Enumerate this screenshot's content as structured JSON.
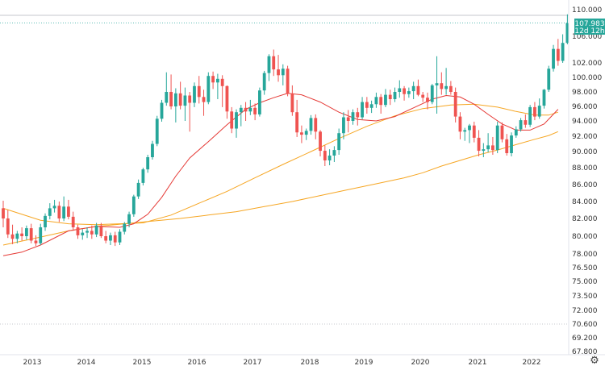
{
  "chart_data": {
    "type": "candlestick",
    "x_ticks": [
      "2013",
      "2014",
      "2015",
      "2016",
      "2017",
      "2018",
      "2019",
      "2020",
      "2021",
      "2022"
    ],
    "y_ticks": [
      "110.000",
      "106.000",
      "102.000",
      "100.000",
      "98.000",
      "96.000",
      "94.000",
      "92.000",
      "90.000",
      "88.000",
      "86.000",
      "84.000",
      "82.000",
      "80.000",
      "78.000",
      "76.500",
      "75.000",
      "73.500",
      "72.000",
      "70.600",
      "69.200",
      "67.800"
    ],
    "last_price": {
      "value": "107.983",
      "countdown": "12d 12h"
    },
    "colors": {
      "up": "#26a69a",
      "down": "#ef5350",
      "ma_red": "#e53935",
      "ma_orange": "#f6a623",
      "ma_orange2": "#f6a623"
    },
    "candles": [
      [
        83.2,
        84.1,
        81.0,
        82.0
      ],
      [
        82.0,
        83.0,
        79.8,
        80.2
      ],
      [
        80.2,
        81.3,
        79.1,
        79.7
      ],
      [
        79.7,
        80.6,
        79.2,
        80.3
      ],
      [
        80.3,
        81.0,
        79.5,
        80.0
      ],
      [
        80.0,
        81.2,
        79.6,
        80.9
      ],
      [
        80.9,
        81.4,
        79.2,
        79.5
      ],
      [
        79.5,
        80.1,
        78.9,
        79.2
      ],
      [
        79.2,
        81.4,
        79.0,
        81.0
      ],
      [
        81.0,
        82.6,
        80.6,
        82.3
      ],
      [
        82.3,
        83.8,
        81.9,
        83.2
      ],
      [
        83.2,
        84.2,
        82.7,
        83.5
      ],
      [
        83.5,
        84.0,
        81.6,
        82.0
      ],
      [
        82.0,
        84.6,
        81.7,
        83.4
      ],
      [
        83.4,
        84.2,
        81.9,
        82.2
      ],
      [
        82.2,
        82.8,
        80.6,
        81.0
      ],
      [
        81.0,
        81.3,
        79.7,
        80.1
      ],
      [
        80.1,
        80.8,
        79.6,
        80.4
      ],
      [
        80.4,
        81.0,
        79.8,
        80.6
      ],
      [
        80.6,
        81.2,
        79.7,
        80.2
      ],
      [
        80.2,
        81.5,
        79.9,
        81.2
      ],
      [
        81.2,
        81.5,
        79.8,
        80.0
      ],
      [
        80.0,
        80.6,
        79.2,
        79.5
      ],
      [
        79.5,
        80.4,
        79.0,
        80.1
      ],
      [
        80.1,
        80.5,
        78.9,
        79.3
      ],
      [
        79.3,
        80.8,
        79.0,
        80.5
      ],
      [
        80.5,
        81.6,
        80.2,
        81.4
      ],
      [
        81.4,
        82.8,
        81.0,
        82.5
      ],
      [
        82.5,
        84.8,
        82.2,
        84.6
      ],
      [
        84.6,
        86.6,
        84.3,
        86.2
      ],
      [
        86.2,
        88.0,
        85.9,
        87.8
      ],
      [
        87.8,
        89.6,
        87.4,
        89.3
      ],
      [
        89.3,
        91.4,
        89.0,
        91.0
      ],
      [
        91.0,
        94.7,
        90.7,
        94.3
      ],
      [
        94.3,
        96.9,
        93.9,
        96.5
      ],
      [
        96.5,
        100.7,
        96.1,
        98.0
      ],
      [
        98.0,
        100.4,
        95.6,
        96.0
      ],
      [
        96.0,
        98.5,
        93.8,
        97.8
      ],
      [
        97.8,
        99.4,
        95.6,
        96.1
      ],
      [
        96.1,
        98.6,
        94.0,
        97.5
      ],
      [
        97.5,
        98.0,
        92.6,
        96.5
      ],
      [
        96.5,
        99.3,
        95.9,
        98.8
      ],
      [
        98.8,
        100.2,
        96.4,
        97.3
      ],
      [
        97.3,
        98.3,
        94.7,
        96.6
      ],
      [
        96.6,
        100.7,
        96.3,
        100.2
      ],
      [
        100.2,
        100.8,
        98.4,
        99.3
      ],
      [
        99.3,
        100.5,
        97.0,
        99.8
      ],
      [
        99.8,
        100.3,
        95.9,
        98.8
      ],
      [
        98.8,
        98.9,
        94.3,
        95.3
      ],
      [
        95.3,
        95.9,
        92.4,
        93.0
      ],
      [
        93.0,
        95.6,
        91.8,
        95.2
      ],
      [
        95.2,
        96.2,
        93.3,
        95.8
      ],
      [
        95.8,
        96.6,
        94.0,
        95.3
      ],
      [
        95.3,
        96.9,
        94.8,
        95.8
      ],
      [
        95.8,
        96.4,
        94.1,
        94.9
      ],
      [
        94.9,
        98.6,
        94.6,
        98.2
      ],
      [
        98.2,
        100.9,
        97.6,
        100.6
      ],
      [
        100.6,
        103.3,
        99.5,
        103.0
      ],
      [
        103.0,
        104.0,
        100.2,
        101.1
      ],
      [
        101.1,
        103.2,
        99.4,
        100.3
      ],
      [
        100.3,
        101.8,
        98.9,
        101.2
      ],
      [
        101.2,
        101.6,
        97.4,
        97.8
      ],
      [
        97.8,
        98.9,
        94.7,
        95.2
      ],
      [
        95.2,
        96.9,
        91.9,
        92.5
      ],
      [
        92.5,
        93.4,
        91.1,
        92.2
      ],
      [
        92.2,
        93.0,
        91.5,
        92.7
      ],
      [
        92.7,
        94.8,
        92.2,
        94.4
      ],
      [
        94.4,
        94.9,
        91.6,
        92.6
      ],
      [
        92.6,
        92.8,
        89.4,
        90.1
      ],
      [
        90.1,
        90.8,
        88.2,
        88.9
      ],
      [
        88.9,
        90.3,
        88.3,
        89.5
      ],
      [
        89.5,
        90.7,
        88.7,
        90.2
      ],
      [
        90.2,
        93.0,
        89.6,
        92.4
      ],
      [
        92.4,
        95.2,
        91.6,
        94.5
      ],
      [
        94.5,
        95.5,
        92.5,
        94.0
      ],
      [
        94.0,
        95.6,
        93.5,
        95.2
      ],
      [
        95.2,
        95.8,
        93.4,
        94.5
      ],
      [
        94.5,
        97.3,
        94.2,
        96.6
      ],
      [
        96.6,
        97.3,
        95.0,
        95.8
      ],
      [
        95.8,
        96.8,
        95.1,
        96.3
      ],
      [
        96.3,
        97.9,
        95.8,
        97.3
      ],
      [
        97.3,
        97.7,
        95.0,
        96.2
      ],
      [
        96.2,
        98.4,
        95.9,
        97.6
      ],
      [
        97.6,
        98.3,
        96.2,
        97.0
      ],
      [
        97.0,
        98.6,
        96.6,
        98.0
      ],
      [
        98.0,
        99.6,
        97.2,
        98.5
      ],
      [
        98.5,
        98.8,
        96.8,
        97.7
      ],
      [
        97.7,
        98.6,
        97.2,
        98.1
      ],
      [
        98.1,
        99.4,
        97.0,
        98.8
      ],
      [
        98.8,
        99.7,
        97.4,
        97.6
      ],
      [
        97.6,
        98.0,
        96.6,
        97.2
      ],
      [
        97.2,
        97.9,
        95.6,
        96.6
      ],
      [
        96.6,
        99.1,
        96.3,
        98.9
      ],
      [
        98.9,
        103.0,
        95.0,
        99.2
      ],
      [
        99.2,
        100.7,
        97.6,
        98.4
      ],
      [
        98.4,
        101.3,
        97.6,
        98.8
      ],
      [
        98.8,
        99.5,
        97.6,
        98.0
      ],
      [
        98.0,
        98.6,
        93.8,
        94.6
      ],
      [
        94.6,
        95.2,
        91.6,
        92.6
      ],
      [
        92.6,
        93.1,
        91.4,
        92.8
      ],
      [
        92.8,
        93.6,
        91.1,
        93.4
      ],
      [
        93.4,
        93.9,
        91.2,
        91.8
      ],
      [
        91.8,
        92.8,
        89.4,
        90.1
      ],
      [
        90.1,
        91.1,
        89.3,
        90.3
      ],
      [
        90.3,
        92.4,
        89.9,
        90.8
      ],
      [
        90.8,
        91.9,
        89.6,
        90.2
      ],
      [
        90.2,
        93.9,
        89.8,
        93.4
      ],
      [
        93.4,
        93.8,
        91.2,
        91.6
      ],
      [
        91.6,
        92.3,
        89.5,
        89.8
      ],
      [
        89.8,
        92.5,
        89.4,
        92.1
      ],
      [
        92.1,
        93.3,
        91.8,
        92.9
      ],
      [
        92.9,
        94.4,
        92.6,
        94.1
      ],
      [
        94.1,
        94.9,
        93.1,
        93.5
      ],
      [
        93.5,
        96.2,
        93.2,
        95.9
      ],
      [
        95.9,
        96.6,
        94.1,
        94.6
      ],
      [
        94.6,
        97.1,
        94.3,
        96.1
      ],
      [
        96.1,
        98.4,
        95.7,
        98.3
      ],
      [
        98.3,
        101.6,
        98.0,
        101.2
      ],
      [
        101.2,
        104.7,
        100.8,
        104.1
      ],
      [
        104.1,
        105.6,
        101.6,
        102.3
      ],
      [
        102.3,
        106.3,
        102.0,
        105.0
      ],
      [
        105.0,
        109.3,
        104.8,
        107.983
      ]
    ],
    "ma_red": [
      [
        0,
        77.8
      ],
      [
        4,
        78.2
      ],
      [
        8,
        79.0
      ],
      [
        14,
        80.6
      ],
      [
        20,
        81.1
      ],
      [
        25,
        81.0
      ],
      [
        28,
        81.4
      ],
      [
        31,
        82.5
      ],
      [
        34,
        84.5
      ],
      [
        37,
        87.0
      ],
      [
        40,
        89.2
      ],
      [
        44,
        91.3
      ],
      [
        48,
        93.5
      ],
      [
        52,
        95.6
      ],
      [
        55,
        96.5
      ],
      [
        58,
        97.2
      ],
      [
        61,
        97.8
      ],
      [
        64,
        97.6
      ],
      [
        68,
        96.6
      ],
      [
        72,
        95.2
      ],
      [
        76,
        94.2
      ],
      [
        80,
        94.0
      ],
      [
        84,
        94.6
      ],
      [
        88,
        95.8
      ],
      [
        92,
        97.0
      ],
      [
        95,
        97.5
      ],
      [
        98,
        97.3
      ],
      [
        101,
        96.3
      ],
      [
        104,
        94.9
      ],
      [
        107,
        93.6
      ],
      [
        110,
        92.8
      ],
      [
        113,
        92.8
      ],
      [
        116,
        93.6
      ],
      [
        119,
        95.6
      ]
    ],
    "ma_orange": [
      [
        0,
        83.2
      ],
      [
        8,
        81.8
      ],
      [
        14,
        81.4
      ],
      [
        20,
        81.3
      ],
      [
        25,
        81.4
      ],
      [
        30,
        81.5
      ],
      [
        36,
        82.4
      ],
      [
        42,
        83.8
      ],
      [
        48,
        85.2
      ],
      [
        54,
        86.8
      ],
      [
        60,
        88.4
      ],
      [
        66,
        90.0
      ],
      [
        72,
        91.7
      ],
      [
        78,
        93.3
      ],
      [
        84,
        94.7
      ],
      [
        90,
        95.7
      ],
      [
        96,
        96.2
      ],
      [
        101,
        96.3
      ],
      [
        106,
        95.9
      ],
      [
        110,
        95.3
      ],
      [
        114,
        94.8
      ],
      [
        117,
        94.8
      ],
      [
        119,
        95.2
      ]
    ],
    "ma_orange2": [
      [
        0,
        79.0
      ],
      [
        8,
        79.9
      ],
      [
        14,
        80.6
      ],
      [
        20,
        81.1
      ],
      [
        26,
        81.4
      ],
      [
        32,
        81.7
      ],
      [
        38,
        82.0
      ],
      [
        44,
        82.4
      ],
      [
        50,
        82.8
      ],
      [
        56,
        83.4
      ],
      [
        62,
        84.0
      ],
      [
        68,
        84.7
      ],
      [
        74,
        85.4
      ],
      [
        80,
        86.1
      ],
      [
        86,
        86.8
      ],
      [
        90,
        87.4
      ],
      [
        94,
        88.2
      ],
      [
        98,
        88.9
      ],
      [
        102,
        89.6
      ],
      [
        106,
        90.2
      ],
      [
        110,
        90.9
      ],
      [
        114,
        91.6
      ],
      [
        117,
        92.1
      ],
      [
        119,
        92.6
      ]
    ]
  },
  "toolbar": {
    "settings_icon": "gear-icon"
  }
}
